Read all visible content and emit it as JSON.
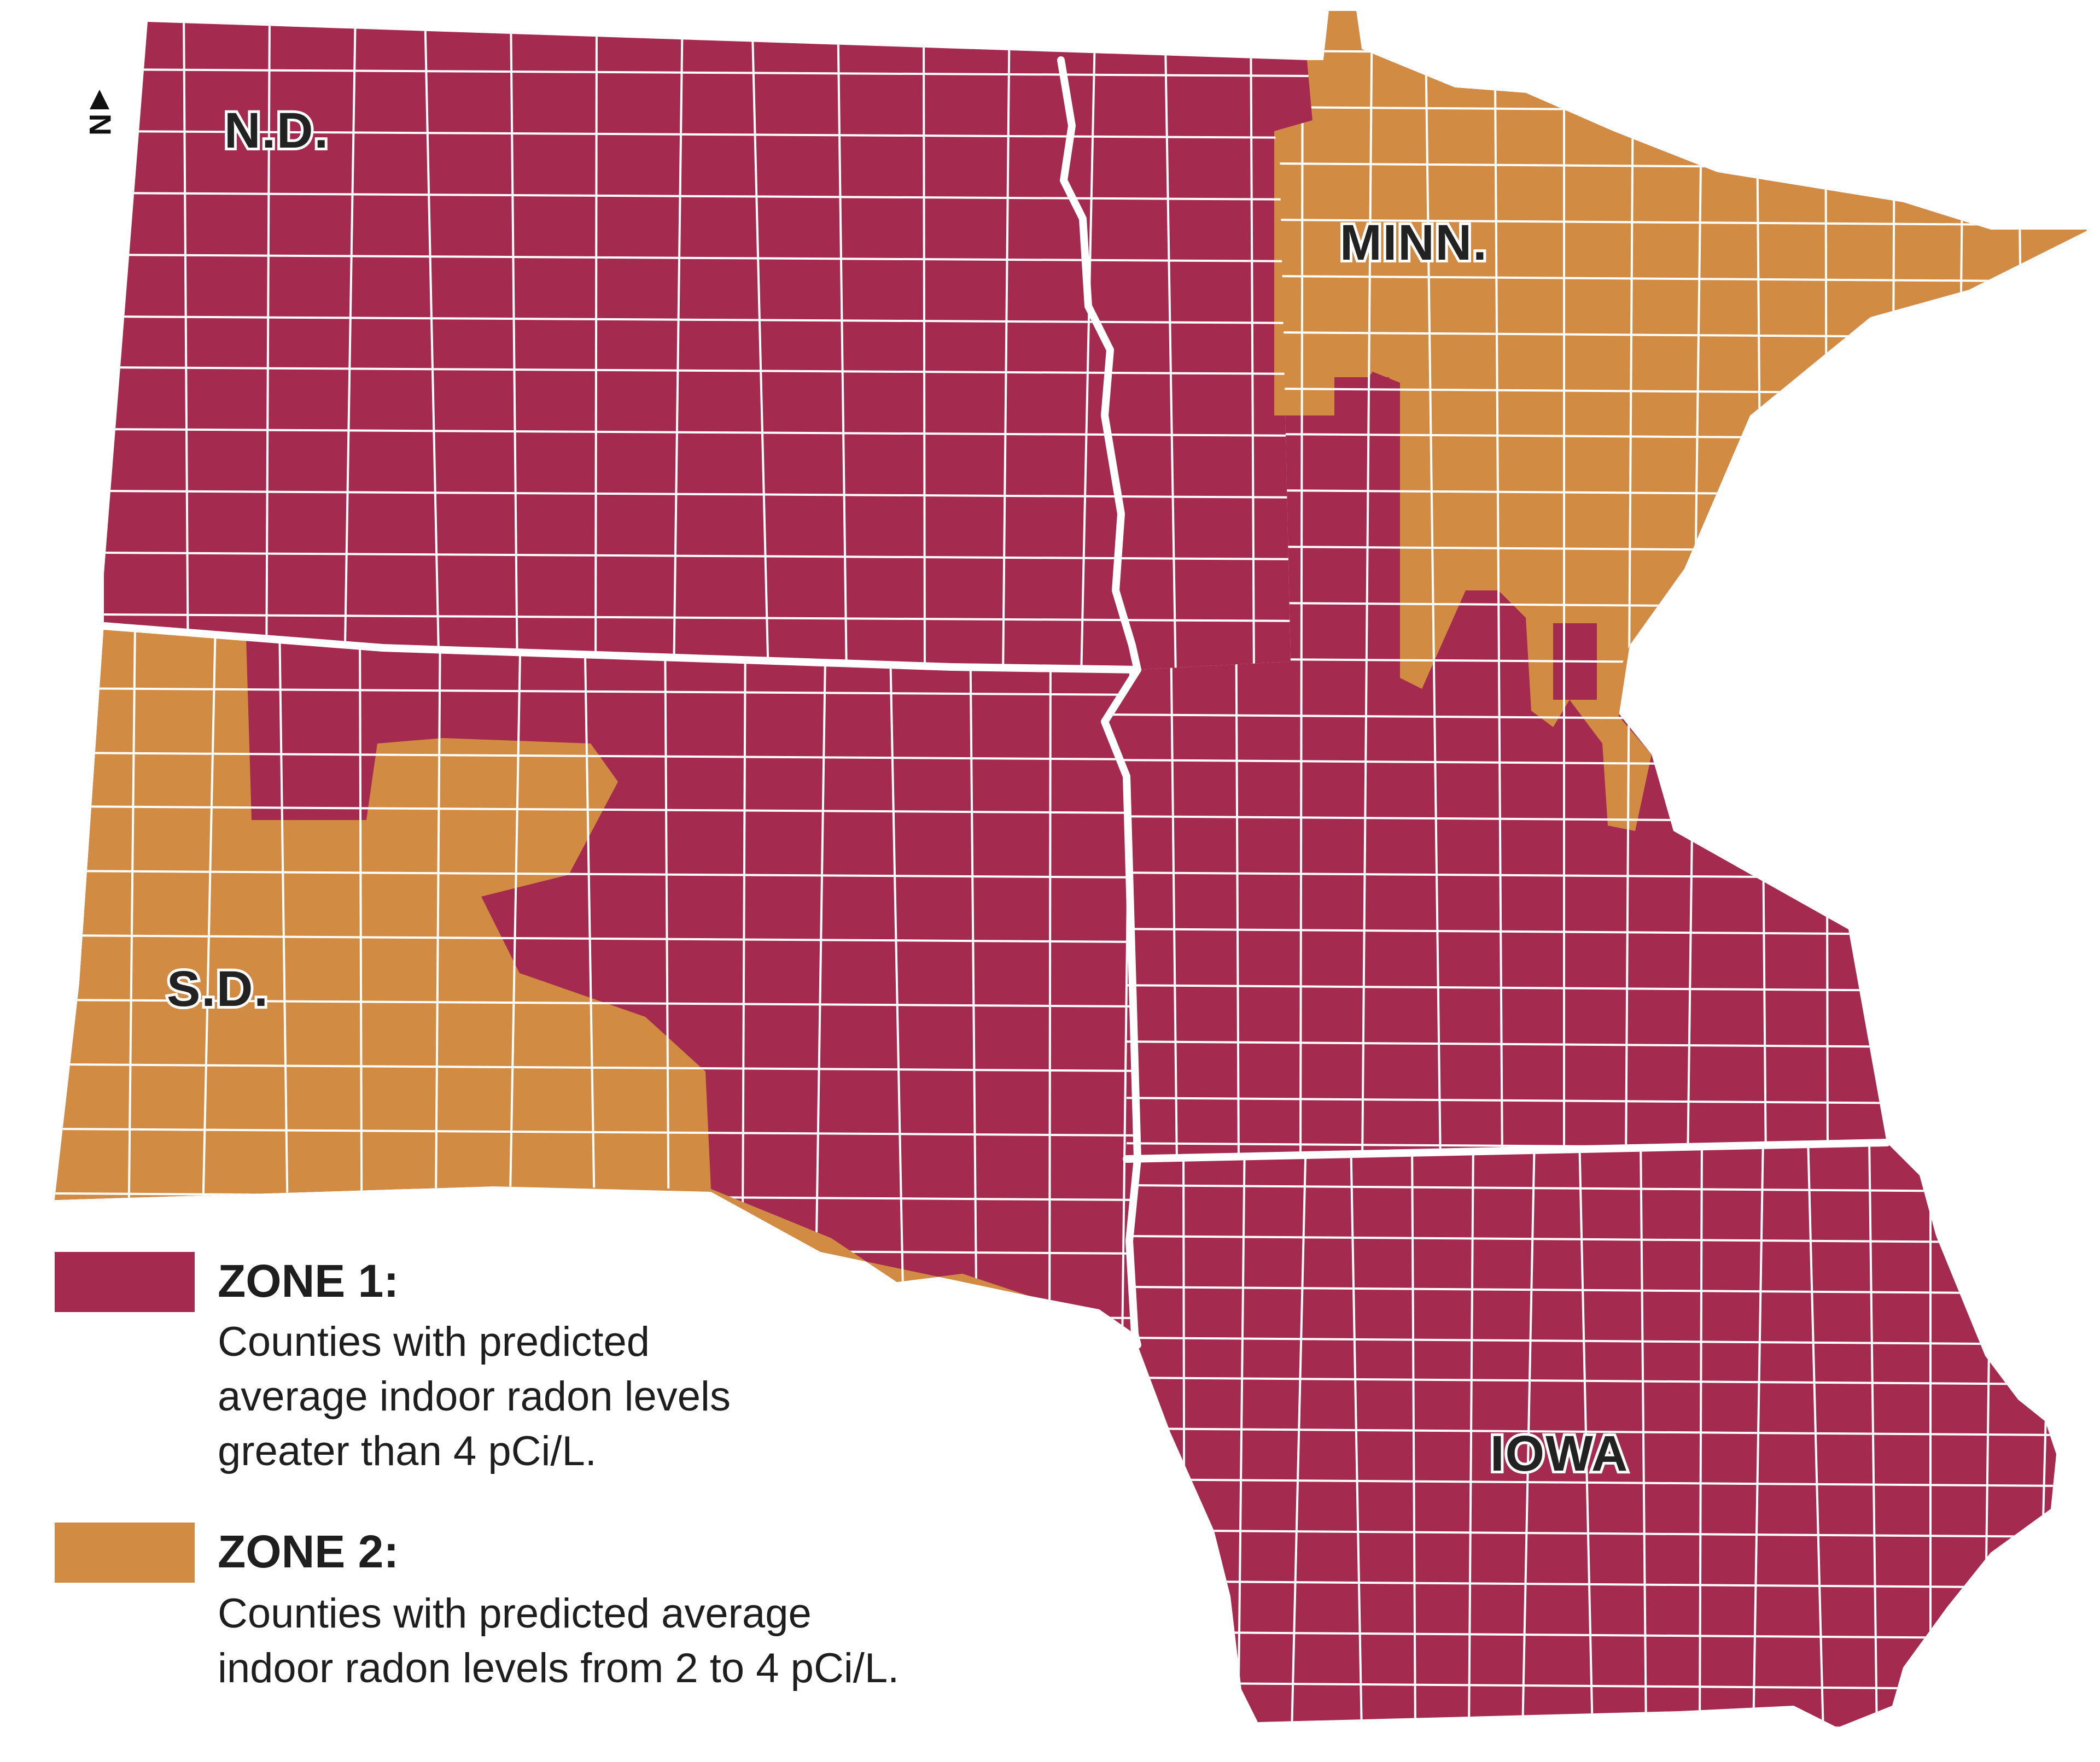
{
  "map": {
    "labels": {
      "nd": "N.D.",
      "sd": "S.D.",
      "mn": "MINN.",
      "ia": "IOWA"
    },
    "north_label": "N",
    "colors": {
      "zone1": "#A42B4F",
      "zone2": "#D28B42",
      "border": "#ffffff"
    },
    "regions": {
      "nd": "Zone 1",
      "sd_east": "Zone 1",
      "sd_west": "Zone 2",
      "mn_south_west": "Zone 1",
      "mn_north_east": "Zone 2",
      "ia": "Zone 1"
    }
  },
  "legend": [
    {
      "zone": "zone1",
      "title": "ZONE 1:",
      "lines": [
        "Counties with predicted",
        "average indoor radon levels",
        "greater than 4 pCi/L."
      ]
    },
    {
      "zone": "zone2",
      "title": "ZONE 2:",
      "lines": [
        "Counties with predicted average",
        "indoor radon levels from 2 to 4 pCi/L."
      ]
    }
  ]
}
